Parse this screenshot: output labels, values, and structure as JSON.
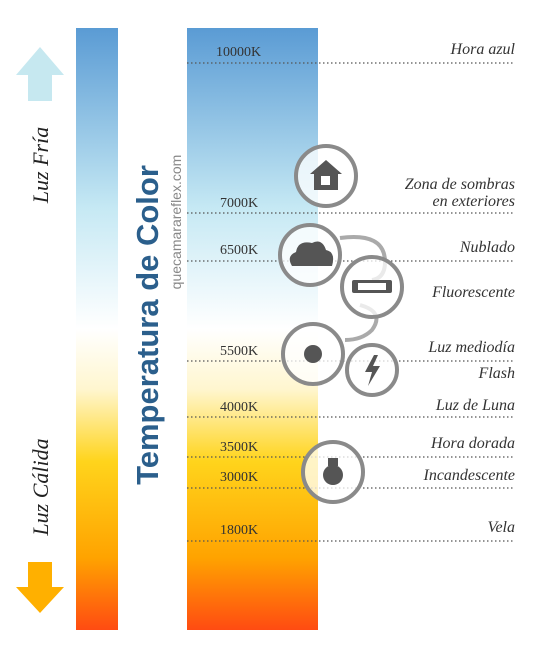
{
  "title": "Temperatura de Color",
  "watermark": "quecamarareflex.com",
  "cold_label": "Luz Fría",
  "warm_label": "Luz Cálida",
  "levels": [
    {
      "kelvin": "10000K",
      "label": "Hora azul"
    },
    {
      "kelvin": "7000K",
      "label": "Zona de sombras",
      "label_2": "en exteriores"
    },
    {
      "kelvin": "6500K",
      "label": "Nublado"
    },
    {
      "label": "Fluorescente"
    },
    {
      "kelvin": "5500K",
      "label": "Luz mediodía"
    },
    {
      "label": "Flash"
    },
    {
      "kelvin": "4000K",
      "label": "Luz de Luna"
    },
    {
      "kelvin": "3500K",
      "label": "Hora dorada"
    },
    {
      "kelvin": "3000K",
      "label": "Incandescente"
    },
    {
      "kelvin": "1800K",
      "label": "Vela"
    }
  ]
}
